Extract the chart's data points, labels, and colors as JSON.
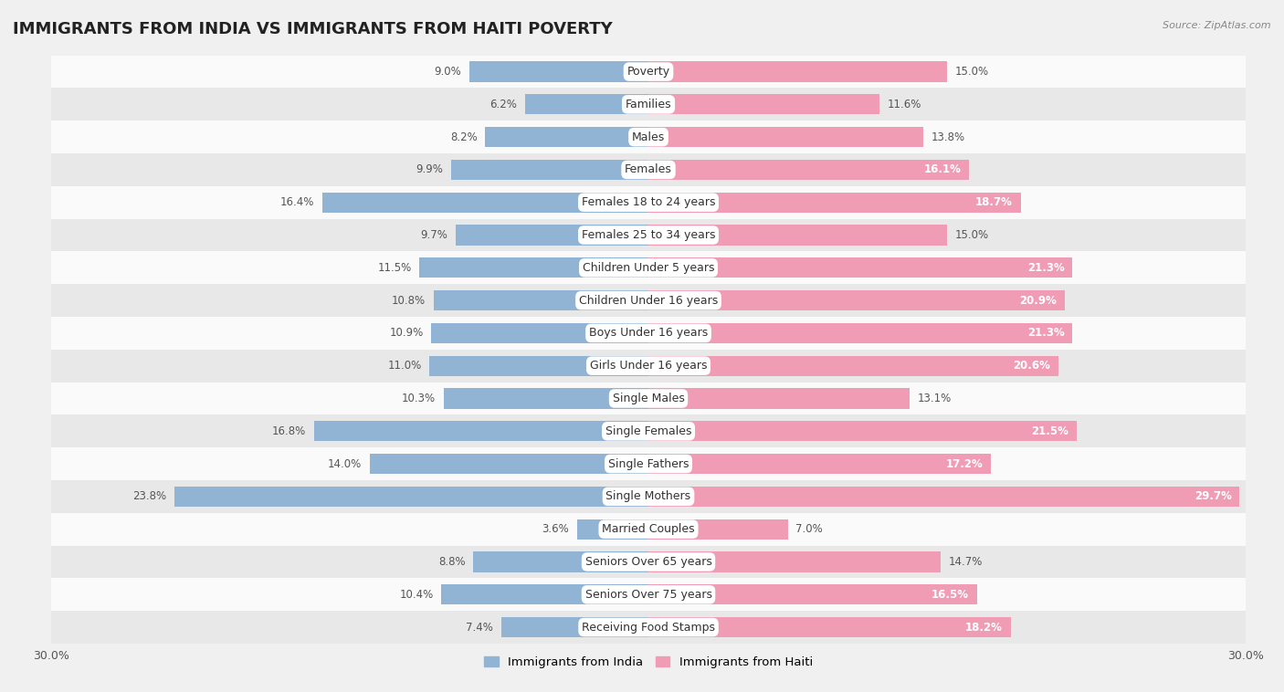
{
  "title": "IMMIGRANTS FROM INDIA VS IMMIGRANTS FROM HAITI POVERTY",
  "source": "Source: ZipAtlas.com",
  "categories": [
    "Poverty",
    "Families",
    "Males",
    "Females",
    "Females 18 to 24 years",
    "Females 25 to 34 years",
    "Children Under 5 years",
    "Children Under 16 years",
    "Boys Under 16 years",
    "Girls Under 16 years",
    "Single Males",
    "Single Females",
    "Single Fathers",
    "Single Mothers",
    "Married Couples",
    "Seniors Over 65 years",
    "Seniors Over 75 years",
    "Receiving Food Stamps"
  ],
  "india_values": [
    9.0,
    6.2,
    8.2,
    9.9,
    16.4,
    9.7,
    11.5,
    10.8,
    10.9,
    11.0,
    10.3,
    16.8,
    14.0,
    23.8,
    3.6,
    8.8,
    10.4,
    7.4
  ],
  "haiti_values": [
    15.0,
    11.6,
    13.8,
    16.1,
    18.7,
    15.0,
    21.3,
    20.9,
    21.3,
    20.6,
    13.1,
    21.5,
    17.2,
    29.7,
    7.0,
    14.7,
    16.5,
    18.2
  ],
  "india_color": "#92b4d4",
  "haiti_color": "#f09cb5",
  "background_color": "#f0f0f0",
  "row_color_light": "#fafafa",
  "row_color_dark": "#e8e8e8",
  "axis_max": 30.0,
  "legend_india": "Immigrants from India",
  "legend_haiti": "Immigrants from Haiti",
  "label_fontsize": 9.0,
  "value_fontsize": 8.5,
  "bar_height": 0.62
}
